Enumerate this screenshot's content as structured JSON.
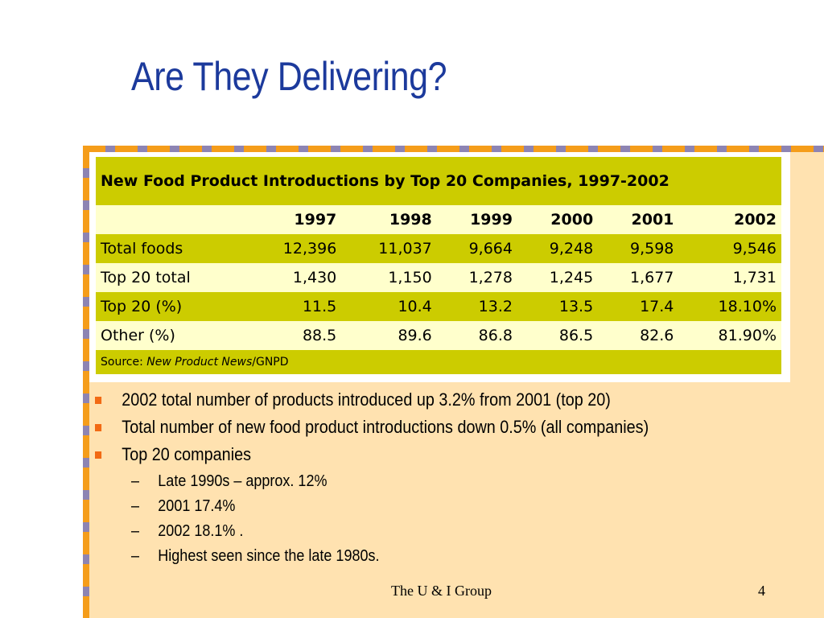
{
  "slide": {
    "title": "Are They Delivering?",
    "footer": "The U & I Group",
    "page_number": "4"
  },
  "table": {
    "title": "New Food Product Introductions by Top 20 Companies, 1997-2002",
    "years": [
      "1997",
      "1998",
      "1999",
      "2000",
      "2001",
      "2002"
    ],
    "rows": [
      {
        "label": "Total foods",
        "values": [
          "12,396",
          "11,037",
          "9,664",
          "9,248",
          "9,598",
          "9,546"
        ]
      },
      {
        "label": "Top 20 total",
        "values": [
          "1,430",
          "1,150",
          "1,278",
          "1,245",
          "1,677",
          "1,731"
        ]
      },
      {
        "label": "Top 20 (%)",
        "values": [
          "11.5",
          "10.4",
          "13.2",
          "13.5",
          "17.4",
          "18.10%"
        ]
      },
      {
        "label": "Other (%)",
        "values": [
          "88.5",
          "89.6",
          "86.8",
          "86.5",
          "82.6",
          "81.90%"
        ]
      }
    ],
    "source_label": "Source:",
    "source_publication": "New Product News",
    "source_suffix": "/GNPD"
  },
  "bullets": [
    "2002 total number of products introduced up 3.2% from 2001 (top 20)",
    "Total number of new food product introductions down 0.5% (all companies)",
    "Top 20 companies"
  ],
  "sub_bullets": [
    "Late 1990s – approx. 12%",
    "2001 17.4%",
    "2002 18.1% .",
    "Highest seen since the late 1980s."
  ],
  "colors": {
    "title": "#1c3a9c",
    "panel_background": "#ffe2b0",
    "border_orange": "#f59d1a",
    "border_purple": "#8d84b3",
    "table_dark_row": "#cccc00",
    "table_light_row": "#ffffcc",
    "bullet_square": "#f26a14"
  }
}
